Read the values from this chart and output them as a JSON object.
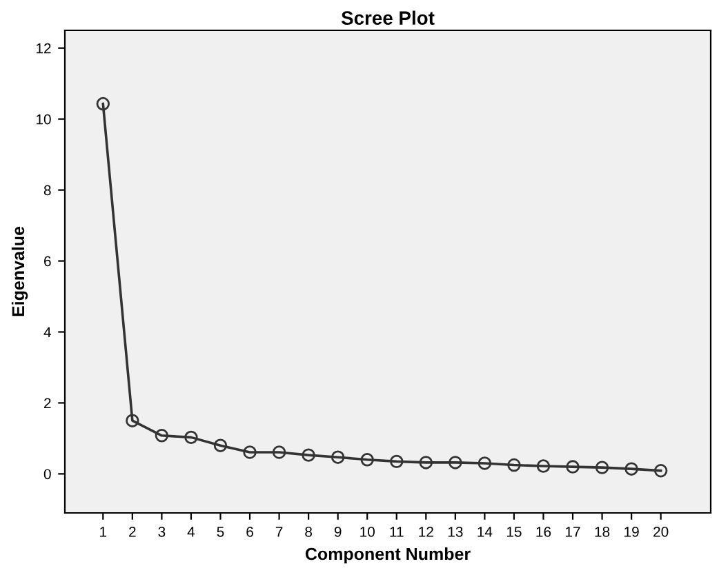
{
  "chart_data": {
    "type": "line",
    "title": "Scree Plot",
    "xlabel": "Component Number",
    "ylabel": "Eigenvalue",
    "x": [
      1,
      2,
      3,
      4,
      5,
      6,
      7,
      8,
      9,
      10,
      11,
      12,
      13,
      14,
      15,
      16,
      17,
      18,
      19,
      20
    ],
    "series": [
      {
        "color": "#333333",
        "values": [
          10.43,
          1.5,
          1.08,
          1.03,
          0.8,
          0.61,
          0.61,
          0.53,
          0.47,
          0.4,
          0.35,
          0.32,
          0.32,
          0.3,
          0.25,
          0.22,
          0.2,
          0.18,
          0.14,
          0.09
        ]
      }
    ],
    "xlim": [
      -0.3,
      21.7
    ],
    "xticks": [
      1,
      2,
      3,
      4,
      5,
      6,
      7,
      8,
      9,
      10,
      11,
      12,
      13,
      14,
      15,
      16,
      17,
      18,
      19,
      20
    ],
    "ylim": [
      -1.1,
      12.5
    ],
    "yticks": [
      0,
      2,
      4,
      6,
      8,
      10,
      12
    ],
    "marker": "circle",
    "line_style": "solid",
    "grid": false,
    "legend": false
  }
}
